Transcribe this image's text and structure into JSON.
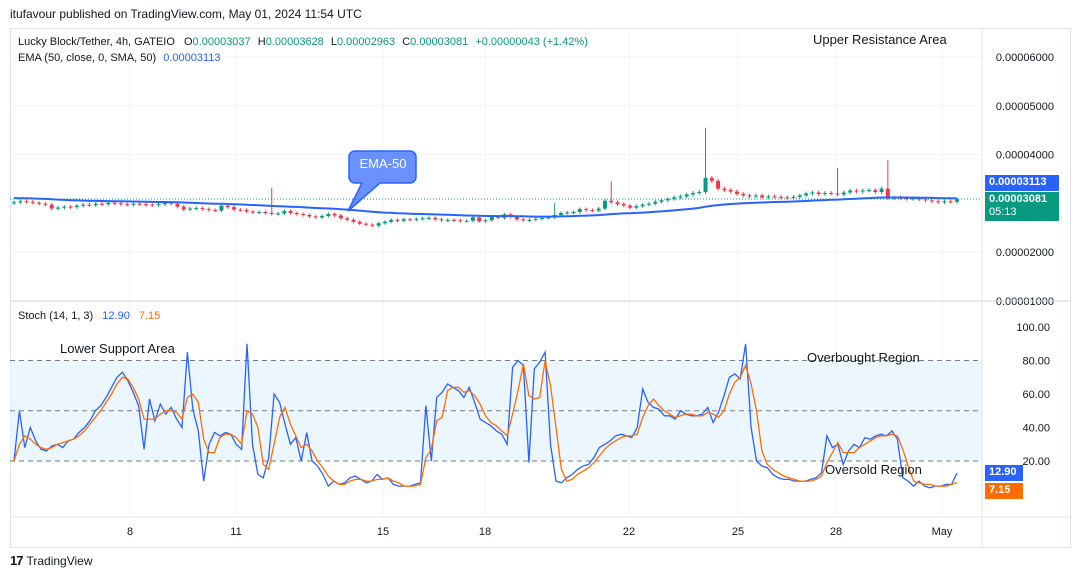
{
  "header": {
    "published_line": "itufavour published on TradingView.com, May 01, 2024 11:54 UTC"
  },
  "legend": {
    "symbol": "Lucky Block/Tether, 4h, GATEIO",
    "o_label": "O",
    "o_value": "0.00003037",
    "h_label": "H",
    "h_value": "0.00003628",
    "l_label": "L",
    "l_value": "0.00002963",
    "c_label": "C",
    "c_value": "0.00003081",
    "change": "+0.00000043 (+1.42%)",
    "ema_label": "EMA (50, close, 0, SMA, 50)",
    "ema_value": "0.00003113",
    "stoch_label": "Stoch (14, 1, 3)",
    "stoch_k": "12.90",
    "stoch_d": "7.15"
  },
  "annotations": {
    "upper_resistance": "Upper Resistance Area",
    "lower_support": "Lower Support Area",
    "overbought": "Overbought Region",
    "oversold": "Oversold Region",
    "ema_callout": "EMA-50"
  },
  "price_tags": {
    "ema": "0.00003113",
    "last": "0.00003081",
    "countdown": "05:13"
  },
  "osc_tags": {
    "k": "12.90",
    "d": "7.15"
  },
  "branding": {
    "logo_text": "TradingView"
  },
  "colors": {
    "up": "#089981",
    "down": "#f23645",
    "ema": "#2962ff",
    "stoch_k": "#2962ff",
    "stoch_d": "#ff6d00",
    "band": "#e3f2fd"
  },
  "chart_data": [
    {
      "type": "candlestick",
      "title": "Lucky Block/Tether, 4h, GATEIO",
      "price_axis_ticks": [
        "0.00006000",
        "0.00005000",
        "0.00004000",
        "0.00002000",
        "0.00001000"
      ],
      "price_axis_tick_values": [
        6e-05,
        5e-05,
        4e-05,
        2e-05,
        1e-05
      ],
      "time_axis_ticks": [
        "8",
        "11",
        "15",
        "18",
        "22",
        "25",
        "28",
        "May"
      ],
      "close": [
        3.02e-05,
        3.04e-05,
        3.03e-05,
        3.01e-05,
        2.99e-05,
        2.97e-05,
        2.89e-05,
        2.91e-05,
        2.93e-05,
        2.92e-05,
        2.95e-05,
        2.97e-05,
        2.96e-05,
        2.99e-05,
        2.98e-05,
        3.01e-05,
        3e-05,
        2.98e-05,
        2.97e-05,
        2.99e-05,
        2.98e-05,
        2.97e-05,
        2.96e-05,
        2.98e-05,
        3.01e-05,
        2.99e-05,
        2.93e-05,
        2.87e-05,
        2.89e-05,
        2.9e-05,
        2.88e-05,
        2.86e-05,
        2.85e-05,
        2.95e-05,
        2.92e-05,
        2.87e-05,
        2.86e-05,
        2.83e-05,
        2.81e-05,
        2.82e-05,
        2.8e-05,
        2.78e-05,
        2.79e-05,
        2.84e-05,
        2.8e-05,
        2.78e-05,
        2.76e-05,
        2.73e-05,
        2.71e-05,
        2.74e-05,
        2.78e-05,
        2.75e-05,
        2.69e-05,
        2.66e-05,
        2.62e-05,
        2.58e-05,
        2.56e-05,
        2.54e-05,
        2.59e-05,
        2.62e-05,
        2.66e-05,
        2.64e-05,
        2.67e-05,
        2.66e-05,
        2.68e-05,
        2.69e-05,
        2.7e-05,
        2.67e-05,
        2.65e-05,
        2.66e-05,
        2.65e-05,
        2.64e-05,
        2.64e-05,
        2.71e-05,
        2.63e-05,
        2.65e-05,
        2.72e-05,
        2.7e-05,
        2.77e-05,
        2.72e-05,
        2.67e-05,
        2.65e-05,
        2.66e-05,
        2.68e-05,
        2.7e-05,
        2.71e-05,
        2.76e-05,
        2.8e-05,
        2.81e-05,
        2.82e-05,
        2.88e-05,
        2.86e-05,
        2.85e-05,
        2.89e-05,
        3.05e-05,
        3.02e-05,
        2.98e-05,
        2.95e-05,
        2.91e-05,
        2.94e-05,
        2.97e-05,
        2.99e-05,
        3.03e-05,
        3.06e-05,
        3.09e-05,
        3.12e-05,
        3.14e-05,
        3.18e-05,
        3.21e-05,
        3.23e-05,
        3.52e-05,
        3.46e-05,
        3.3e-05,
        3.27e-05,
        3.24e-05,
        3.19e-05,
        3.16e-05,
        3.14e-05,
        3.16e-05,
        3.12e-05,
        3.14e-05,
        3.13e-05,
        3.12e-05,
        3.11e-05,
        3.13e-05,
        3.16e-05,
        3.2e-05,
        3.22e-05,
        3.19e-05,
        3.21e-05,
        3.2e-05,
        3.18e-05,
        3.22e-05,
        3.26e-05,
        3.24e-05,
        3.26e-05,
        3.27e-05,
        3.23e-05,
        3.3e-05,
        3.1e-05,
        3.12e-05,
        3.11e-05,
        3.09e-05,
        3.1e-05,
        3.08e-05,
        3.06e-05,
        3.04e-05,
        3.02e-05,
        3.04e-05,
        3.03e-05,
        3.08e-05
      ]
    },
    {
      "type": "line",
      "title": "EMA (50, close, 0, SMA, 50)",
      "last_value": 3.113e-05
    },
    {
      "type": "line",
      "title": "Stoch (14, 1, 3)",
      "ylim": [
        0,
        100
      ],
      "axis_ticks": [
        "100.00",
        "80.00",
        "60.00",
        "40.00",
        "20.00"
      ],
      "axis_tick_values": [
        100,
        80,
        60,
        40,
        20
      ],
      "band": [
        20,
        80
      ],
      "series": [
        {
          "name": "K",
          "last": 12.9,
          "values": [
            20,
            50,
            28,
            40,
            32,
            27,
            26,
            29,
            30,
            28,
            32,
            33,
            37,
            40,
            44,
            50,
            53,
            58,
            64,
            70,
            73,
            68,
            61,
            53,
            27,
            57,
            44,
            54,
            48,
            52,
            45,
            40,
            85,
            51,
            38,
            8,
            30,
            37,
            35,
            37,
            36,
            30,
            27,
            90,
            30,
            12,
            10,
            22,
            60,
            55,
            42,
            30,
            34,
            20,
            37,
            20,
            17,
            12,
            5,
            8,
            6,
            7,
            10,
            11,
            9,
            7,
            8,
            12,
            9,
            10,
            6,
            5,
            5,
            5,
            6,
            7,
            53,
            20,
            58,
            61,
            66,
            64,
            62,
            58,
            64,
            55,
            45,
            43,
            41,
            38,
            36,
            30,
            76,
            80,
            77,
            19,
            75,
            79,
            85,
            30,
            8,
            7,
            10,
            12,
            15,
            17,
            18,
            22,
            28,
            30,
            32,
            35,
            36,
            35,
            34,
            40,
            63,
            55,
            52,
            51,
            47,
            47,
            45,
            50,
            48,
            47,
            47,
            48,
            52,
            43,
            49,
            59,
            70,
            72,
            69,
            90,
            40,
            20,
            17,
            16,
            12,
            10,
            9,
            9,
            8,
            8,
            8,
            9,
            10,
            13,
            35,
            28,
            30,
            18,
            26,
            30,
            28,
            34,
            33,
            35,
            36,
            35,
            38,
            33,
            10,
            8,
            5,
            8,
            5,
            4,
            5,
            5,
            6,
            6,
            12.9
          ]
        },
        {
          "name": "D",
          "last": 7.15,
          "values": [
            20,
            30,
            35,
            33,
            30,
            28,
            27,
            28,
            30,
            31,
            32,
            33,
            35,
            38,
            42,
            46,
            50,
            55,
            60,
            66,
            70,
            69,
            64,
            57,
            45,
            45,
            45,
            48,
            50,
            50,
            49,
            45,
            58,
            60,
            55,
            33,
            25,
            25,
            34,
            36,
            36,
            34,
            30,
            50,
            48,
            40,
            18,
            15,
            30,
            46,
            52,
            42,
            35,
            28,
            30,
            26,
            20,
            16,
            11,
            8,
            6,
            6,
            8,
            9,
            9,
            8,
            8,
            9,
            9,
            10,
            8,
            7,
            5,
            5,
            5,
            6,
            22,
            27,
            44,
            46,
            62,
            64,
            64,
            61,
            62,
            59,
            54,
            47,
            43,
            41,
            38,
            35,
            48,
            62,
            78,
            59,
            57,
            58,
            80,
            65,
            40,
            15,
            8,
            9,
            12,
            14,
            16,
            19,
            23,
            27,
            30,
            32,
            34,
            35,
            35,
            36,
            46,
            53,
            57,
            53,
            50,
            48,
            46,
            47,
            48,
            48,
            47,
            47,
            49,
            48,
            46,
            50,
            60,
            67,
            70,
            77,
            66,
            50,
            26,
            18,
            15,
            13,
            11,
            10,
            9,
            8,
            8,
            8,
            9,
            11,
            19,
            25,
            31,
            25,
            25,
            25,
            28,
            30,
            32,
            34,
            35,
            35,
            36,
            35,
            27,
            17,
            8,
            7,
            6,
            6,
            5,
            5,
            5,
            6,
            7.15
          ]
        }
      ]
    }
  ]
}
